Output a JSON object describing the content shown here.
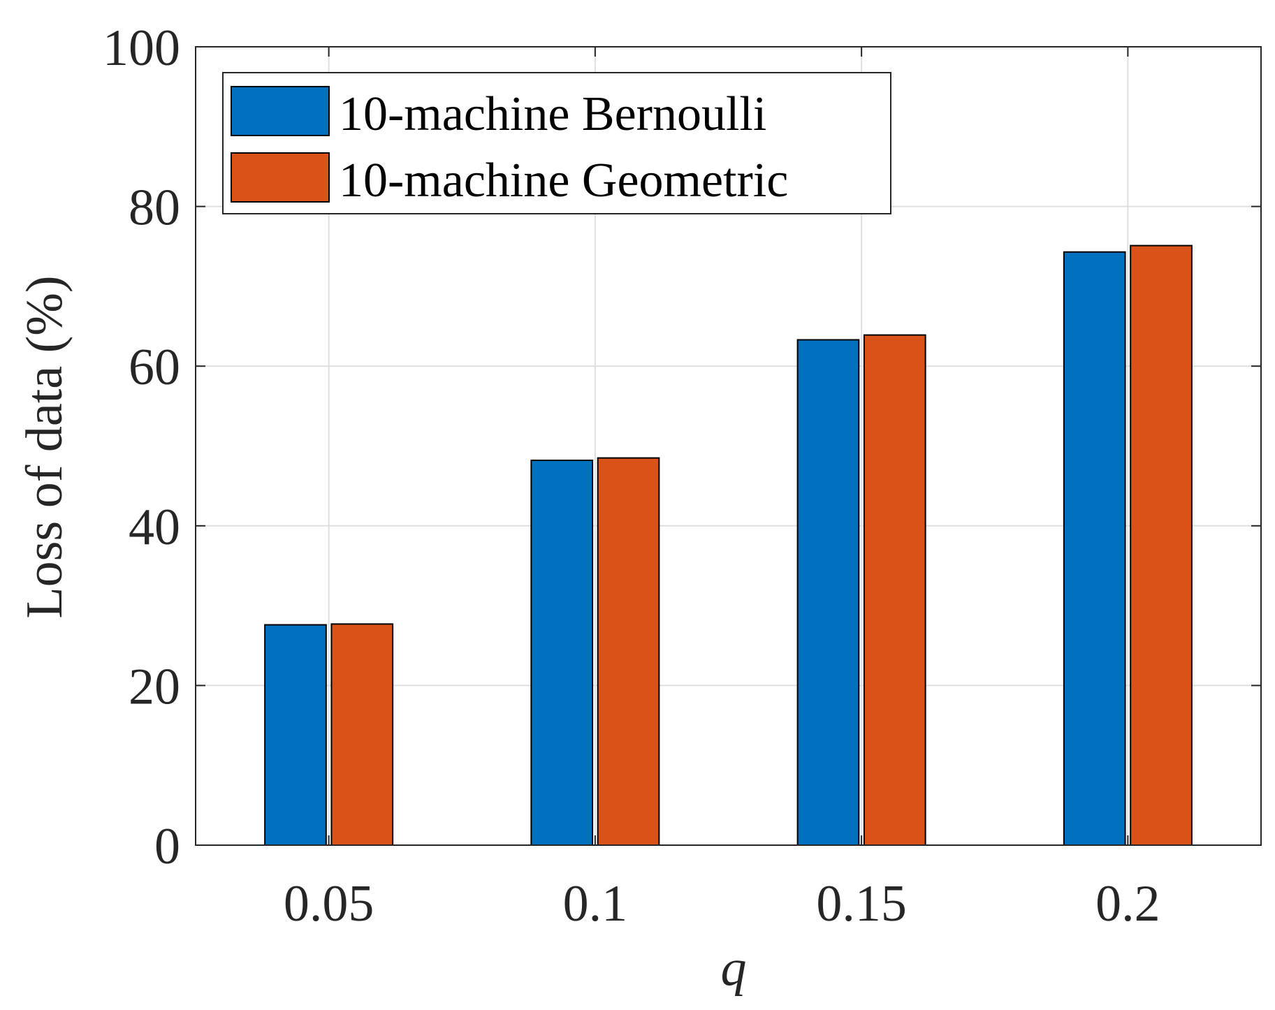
{
  "chart_data": {
    "type": "bar",
    "title": "",
    "xlabel": "q",
    "ylabel": "Loss of data (%)",
    "categories": [
      "0.05",
      "0.1",
      "0.15",
      "0.2"
    ],
    "ylim": [
      0,
      100
    ],
    "yticks": [
      0,
      20,
      40,
      60,
      80,
      100
    ],
    "grid": true,
    "legend_position": "top-left",
    "series": [
      {
        "name": "10-machine Bernoulli",
        "color": "#0072BD",
        "values": [
          27.6,
          48.2,
          63.3,
          74.3
        ]
      },
      {
        "name": "10-machine Geometric",
        "color": "#D95319",
        "values": [
          27.7,
          48.5,
          63.9,
          75.1
        ]
      }
    ]
  }
}
